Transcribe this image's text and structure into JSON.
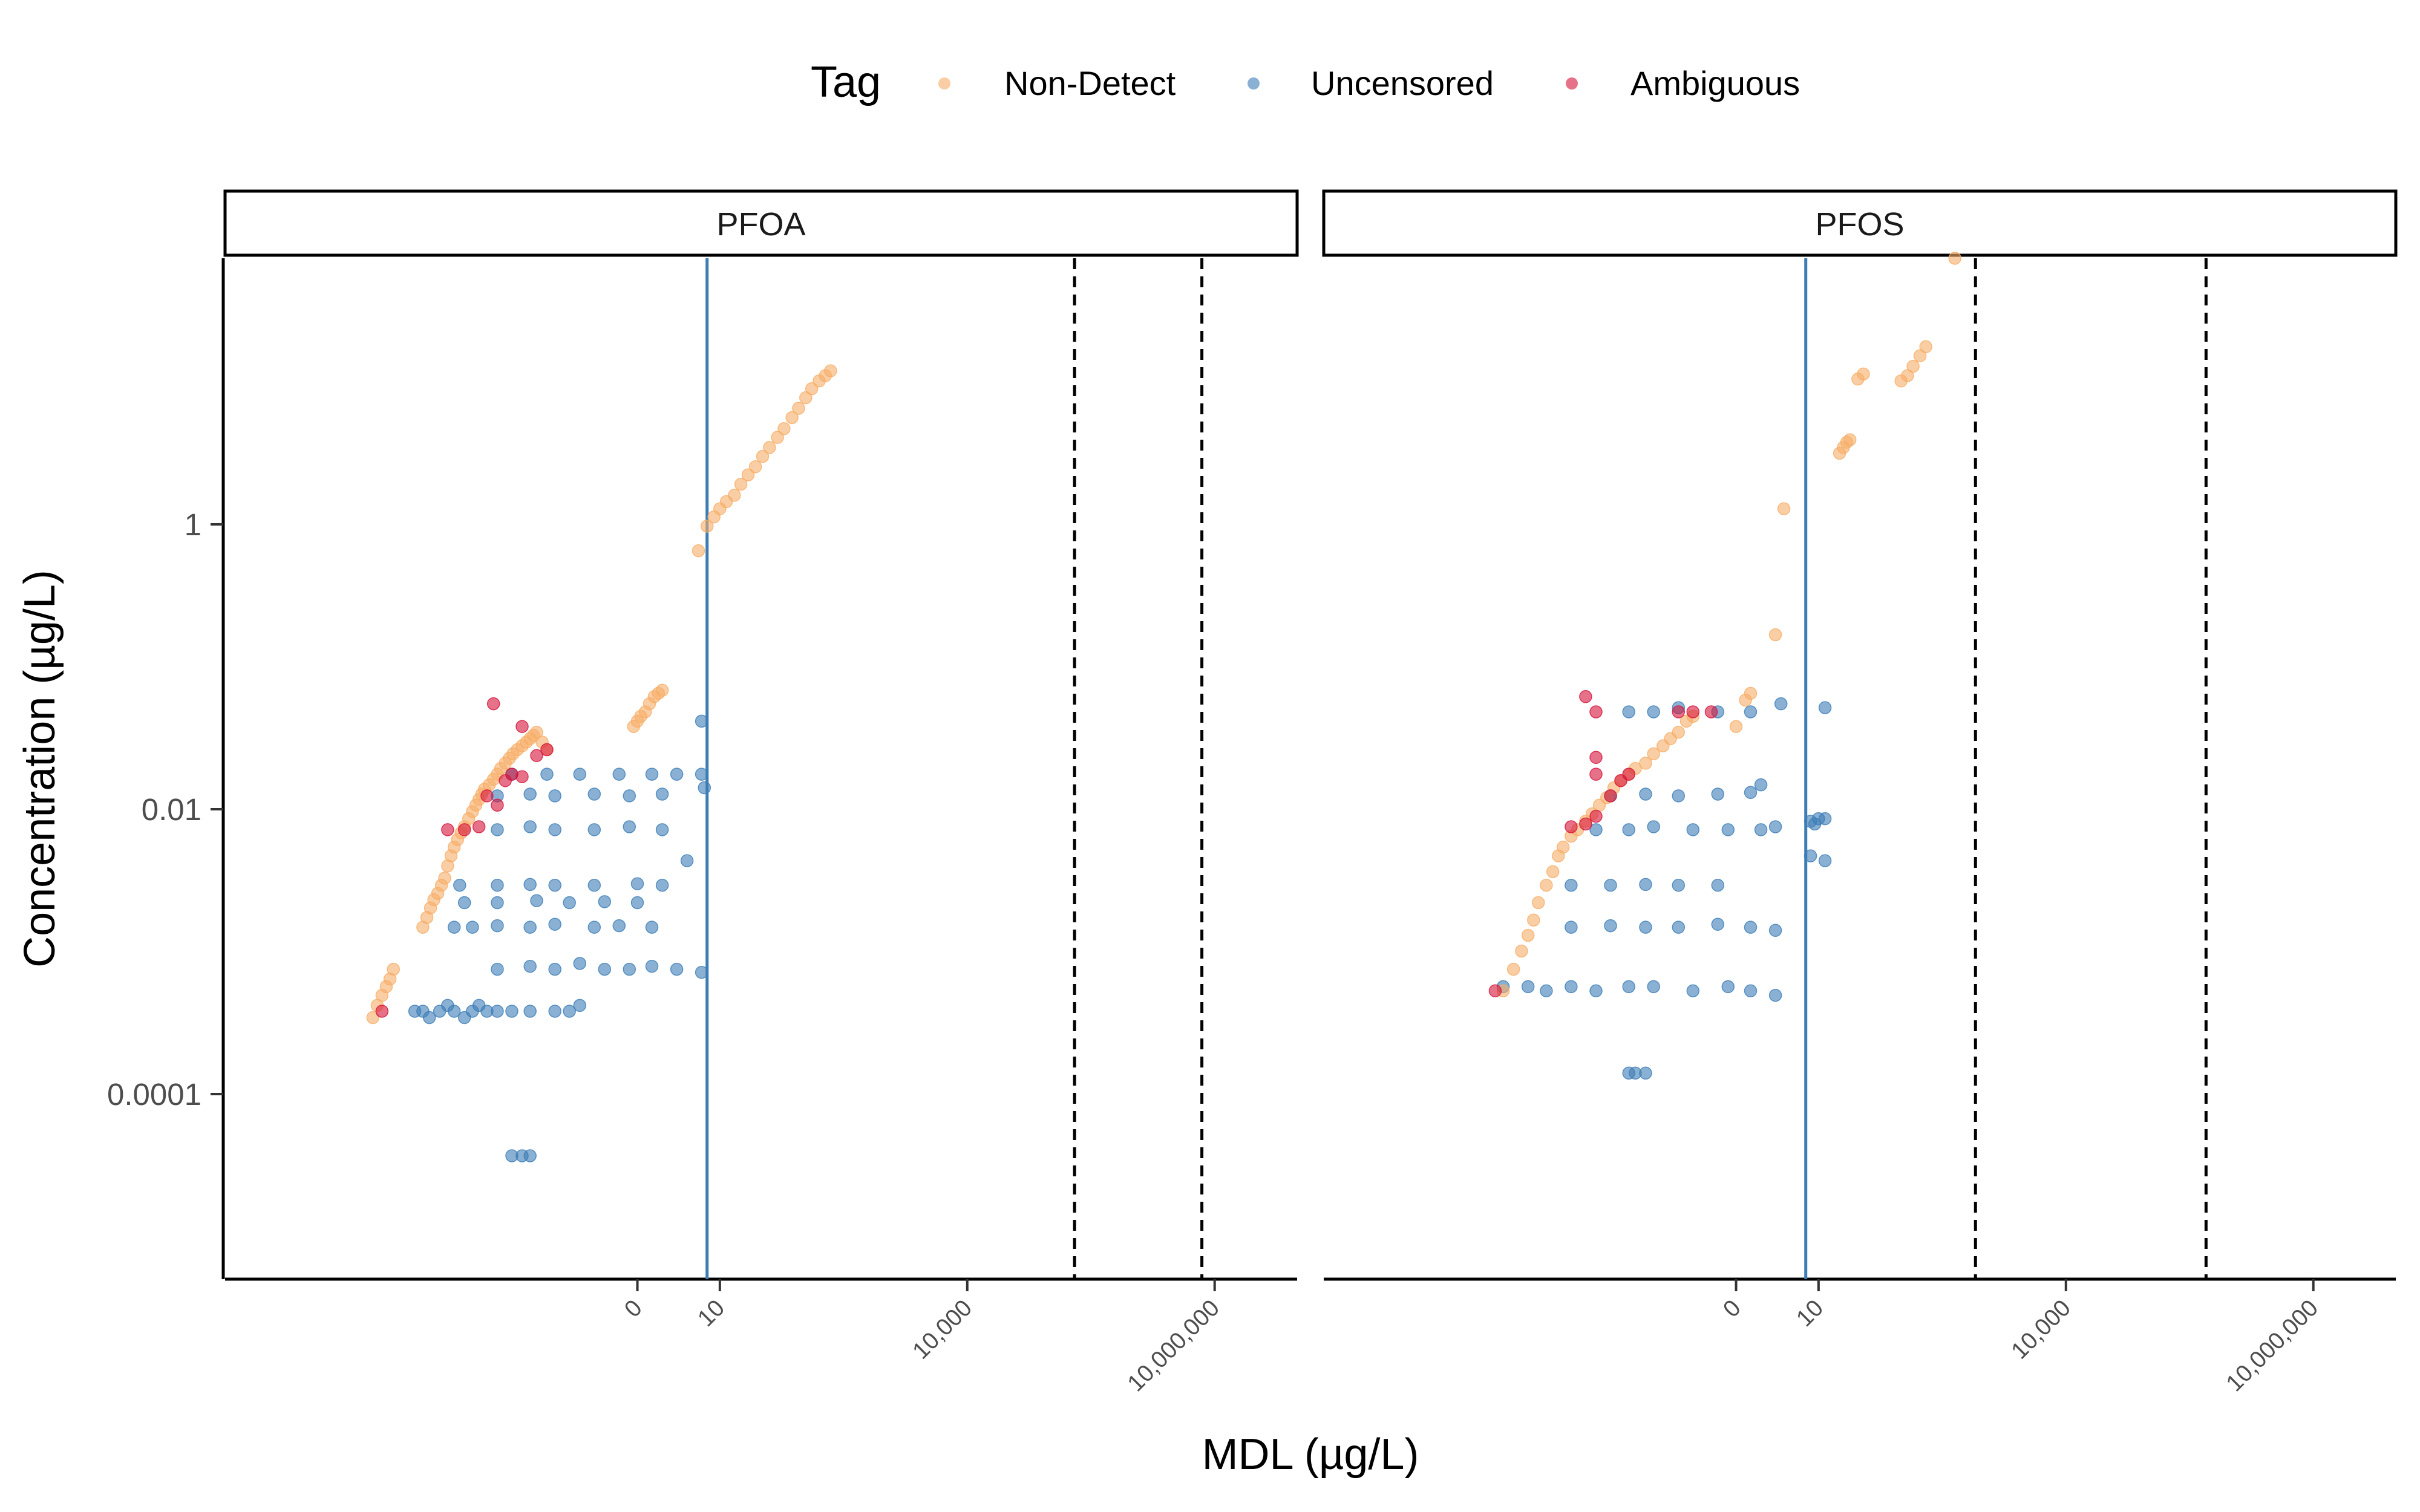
{
  "chart_data": {
    "type": "scatter",
    "title": "",
    "xlabel": "MDL (µg/L)",
    "ylabel": "Concentration (µg/L)",
    "x_scale": "log10 (labels: 0, 10, 10,000, 10,000,000)",
    "y_scale": "log10",
    "xlim": [
      1e-05,
      100000000
    ],
    "ylim": [
      1.2e-06,
      25
    ],
    "x_ticks": [
      {
        "value": 1,
        "label": "0"
      },
      {
        "value": 10,
        "label": "10"
      },
      {
        "value": 10000,
        "label": "10,000"
      },
      {
        "value": 10000000,
        "label": "10,000,000"
      }
    ],
    "y_ticks": [
      {
        "value": 1,
        "label": "1"
      },
      {
        "value": 0.01,
        "label": "0.01"
      },
      {
        "value": 0.0001,
        "label": "0.0001"
      }
    ],
    "legend": {
      "title": "Tag",
      "position": "top",
      "entries": [
        {
          "label": "Non-Detect",
          "color": "#f6ae67"
        },
        {
          "label": "Uncensored",
          "color": "#3c7db6"
        },
        {
          "label": "Ambiguous",
          "color": "#d6143b"
        }
      ]
    },
    "grid": false,
    "facets": [
      {
        "name": "PFOA",
        "vline_solid": 7,
        "vlines_dashed": [
          200000,
          7000000
        ],
        "non_detect_points": [
          [
            0.00062,
            9e-05
          ],
          [
            0.0007,
            0.00011
          ],
          [
            0.0008,
            0.00013
          ],
          [
            0.0009,
            0.00015
          ],
          [
            0.001,
            0.00017
          ],
          [
            0.0011,
            0.0002
          ],
          [
            0.0025,
            0.0004
          ],
          [
            0.0028,
            0.00047
          ],
          [
            0.0031,
            0.00055
          ],
          [
            0.0034,
            0.00063
          ],
          [
            0.0038,
            0.0007
          ],
          [
            0.0042,
            0.0008
          ],
          [
            0.0046,
            0.0009
          ],
          [
            0.005,
            0.0011
          ],
          [
            0.0055,
            0.0013
          ],
          [
            0.006,
            0.0015
          ],
          [
            0.0066,
            0.0017
          ],
          [
            0.0073,
            0.0019
          ],
          [
            0.008,
            0.0021
          ],
          [
            0.009,
            0.0024
          ],
          [
            0.01,
            0.0027
          ],
          [
            0.011,
            0.003
          ],
          [
            0.012,
            0.0033
          ],
          [
            0.013,
            0.0036
          ],
          [
            0.014,
            0.0039
          ],
          [
            0.016,
            0.0042
          ],
          [
            0.018,
            0.0046
          ],
          [
            0.02,
            0.005
          ],
          [
            0.022,
            0.0055
          ],
          [
            0.025,
            0.006
          ],
          [
            0.028,
            0.0065
          ],
          [
            0.031,
            0.007
          ],
          [
            0.035,
            0.0075
          ],
          [
            0.04,
            0.008
          ],
          [
            0.045,
            0.0085
          ],
          [
            0.05,
            0.009
          ],
          [
            0.055,
            0.0095
          ],
          [
            0.06,
            0.01
          ],
          [
            0.07,
            0.0085
          ],
          [
            0.08,
            0.0075
          ],
          [
            0.9,
            0.011
          ],
          [
            1.0,
            0.012
          ],
          [
            1.1,
            0.013
          ],
          [
            1.25,
            0.014
          ],
          [
            1.4,
            0.016
          ],
          [
            1.6,
            0.018
          ],
          [
            1.8,
            0.019
          ],
          [
            2.0,
            0.02
          ],
          [
            5.5,
            0.2
          ],
          [
            7,
            0.3
          ],
          [
            8.5,
            0.35
          ],
          [
            10,
            0.4
          ],
          [
            12,
            0.45
          ],
          [
            15,
            0.5
          ],
          [
            18,
            0.6
          ],
          [
            22,
            0.7
          ],
          [
            27,
            0.8
          ],
          [
            33,
            0.95
          ],
          [
            40,
            1.1
          ],
          [
            50,
            1.3
          ],
          [
            60,
            1.5
          ],
          [
            75,
            1.8
          ],
          [
            90,
            2.1
          ],
          [
            110,
            2.5
          ],
          [
            130,
            2.9
          ],
          [
            160,
            3.3
          ],
          [
            190,
            3.6
          ],
          [
            220,
            3.9
          ]
        ],
        "uncensored_points": [
          [
            0.002,
            0.0001
          ],
          [
            0.0025,
            0.0001
          ],
          [
            0.003,
            9e-05
          ],
          [
            0.004,
            0.0001
          ],
          [
            0.005,
            0.00011
          ],
          [
            0.006,
            0.0001
          ],
          [
            0.008,
            9e-05
          ],
          [
            0.01,
            0.0001
          ],
          [
            0.012,
            0.00011
          ],
          [
            0.015,
            0.0001
          ],
          [
            0.02,
            0.0001
          ],
          [
            0.03,
            0.0001
          ],
          [
            0.05,
            0.0001
          ],
          [
            0.1,
            0.0001
          ],
          [
            0.15,
            0.0001
          ],
          [
            0.2,
            0.00011
          ],
          [
            0.03,
            9.2e-06
          ],
          [
            0.04,
            9.2e-06
          ],
          [
            0.05,
            9.2e-06
          ],
          [
            0.02,
            0.0002
          ],
          [
            0.05,
            0.00021
          ],
          [
            0.1,
            0.0002
          ],
          [
            0.2,
            0.00022
          ],
          [
            0.4,
            0.0002
          ],
          [
            0.8,
            0.0002
          ],
          [
            1.5,
            0.00021
          ],
          [
            3,
            0.0002
          ],
          [
            6,
            0.00019
          ],
          [
            0.006,
            0.0004
          ],
          [
            0.01,
            0.0004
          ],
          [
            0.02,
            0.00041
          ],
          [
            0.05,
            0.0004
          ],
          [
            0.1,
            0.00042
          ],
          [
            0.3,
            0.0004
          ],
          [
            0.6,
            0.00041
          ],
          [
            1.5,
            0.0004
          ],
          [
            0.008,
            0.0006
          ],
          [
            0.02,
            0.0006
          ],
          [
            0.06,
            0.00062
          ],
          [
            0.15,
            0.0006
          ],
          [
            0.4,
            0.00061
          ],
          [
            1,
            0.0006
          ],
          [
            0.007,
            0.0008
          ],
          [
            0.02,
            0.0008
          ],
          [
            0.05,
            0.00081
          ],
          [
            0.1,
            0.0008
          ],
          [
            0.3,
            0.0008
          ],
          [
            1,
            0.00082
          ],
          [
            2,
            0.0008
          ],
          [
            0.02,
            0.002
          ],
          [
            0.05,
            0.0021
          ],
          [
            0.1,
            0.002
          ],
          [
            0.3,
            0.002
          ],
          [
            0.8,
            0.0021
          ],
          [
            2,
            0.002
          ],
          [
            4,
            0.0012
          ],
          [
            0.02,
            0.0035
          ],
          [
            0.05,
            0.0036
          ],
          [
            0.1,
            0.0035
          ],
          [
            0.3,
            0.0036
          ],
          [
            0.8,
            0.0035
          ],
          [
            2,
            0.0036
          ],
          [
            0.03,
            0.005
          ],
          [
            0.08,
            0.005
          ],
          [
            0.2,
            0.005
          ],
          [
            0.6,
            0.005
          ],
          [
            1.5,
            0.005
          ],
          [
            3,
            0.005
          ],
          [
            6,
            0.005
          ],
          [
            6,
            0.012
          ],
          [
            6.5,
            0.004
          ]
        ],
        "ambiguous_points": [
          [
            0.0008,
            0.0001
          ],
          [
            0.005,
            0.002
          ],
          [
            0.008,
            0.002
          ],
          [
            0.012,
            0.0021
          ],
          [
            0.015,
            0.0035
          ],
          [
            0.02,
            0.003
          ],
          [
            0.025,
            0.0045
          ],
          [
            0.03,
            0.005
          ],
          [
            0.04,
            0.0048
          ],
          [
            0.06,
            0.0068
          ],
          [
            0.08,
            0.0075
          ],
          [
            0.018,
            0.016
          ],
          [
            0.04,
            0.011
          ]
        ]
      },
      {
        "name": "PFOS",
        "vline_solid": 7,
        "vlines_dashed": [
          800,
          500000
        ],
        "non_detect_points": [
          [
            0.0015,
            0.00014
          ],
          [
            0.002,
            0.0002
          ],
          [
            0.0025,
            0.00027
          ],
          [
            0.003,
            0.00035
          ],
          [
            0.0035,
            0.00045
          ],
          [
            0.004,
            0.0006
          ],
          [
            0.005,
            0.0008
          ],
          [
            0.006,
            0.001
          ],
          [
            0.007,
            0.0013
          ],
          [
            0.008,
            0.0015
          ],
          [
            0.01,
            0.0018
          ],
          [
            0.012,
            0.002
          ],
          [
            0.015,
            0.0023
          ],
          [
            0.018,
            0.0026
          ],
          [
            0.022,
            0.003
          ],
          [
            0.027,
            0.0034
          ],
          [
            0.033,
            0.004
          ],
          [
            0.04,
            0.0045
          ],
          [
            0.05,
            0.005
          ],
          [
            0.06,
            0.0055
          ],
          [
            0.08,
            0.006
          ],
          [
            0.1,
            0.007
          ],
          [
            0.13,
            0.008
          ],
          [
            0.16,
            0.009
          ],
          [
            0.2,
            0.01
          ],
          [
            0.25,
            0.012
          ],
          [
            0.3,
            0.013
          ],
          [
            1.0,
            0.011
          ],
          [
            1.3,
            0.017
          ],
          [
            1.5,
            0.019
          ],
          [
            3,
            0.05
          ],
          [
            3.8,
            0.4
          ],
          [
            18,
            1.0
          ],
          [
            20,
            1.1
          ],
          [
            22,
            1.2
          ],
          [
            24,
            1.25
          ],
          [
            100,
            3.3
          ],
          [
            120,
            3.6
          ],
          [
            140,
            4.2
          ],
          [
            170,
            5.0
          ],
          [
            200,
            5.8
          ],
          [
            30,
            3.4
          ],
          [
            35,
            3.7
          ],
          [
            450,
            25
          ]
        ],
        "uncensored_points": [
          [
            0.0015,
            0.00015
          ],
          [
            0.003,
            0.00015
          ],
          [
            0.005,
            0.00014
          ],
          [
            0.01,
            0.00015
          ],
          [
            0.02,
            0.00014
          ],
          [
            0.05,
            0.00015
          ],
          [
            0.1,
            0.00015
          ],
          [
            0.3,
            0.00014
          ],
          [
            0.8,
            0.00015
          ],
          [
            1.5,
            0.00014
          ],
          [
            3,
            0.00013
          ],
          [
            0.05,
            3.6e-05
          ],
          [
            0.06,
            3.6e-05
          ],
          [
            0.08,
            3.6e-05
          ],
          [
            0.01,
            0.0004
          ],
          [
            0.03,
            0.00041
          ],
          [
            0.08,
            0.0004
          ],
          [
            0.2,
            0.0004
          ],
          [
            0.6,
            0.00042
          ],
          [
            1.5,
            0.0004
          ],
          [
            3,
            0.00038
          ],
          [
            0.01,
            0.0008
          ],
          [
            0.03,
            0.0008
          ],
          [
            0.08,
            0.00081
          ],
          [
            0.2,
            0.0008
          ],
          [
            0.6,
            0.0008
          ],
          [
            0.02,
            0.002
          ],
          [
            0.05,
            0.002
          ],
          [
            0.1,
            0.0021
          ],
          [
            0.3,
            0.002
          ],
          [
            0.8,
            0.002
          ],
          [
            2,
            0.002
          ],
          [
            3,
            0.0021
          ],
          [
            8,
            0.0023
          ],
          [
            9,
            0.0022
          ],
          [
            0.03,
            0.0035
          ],
          [
            0.08,
            0.0036
          ],
          [
            0.2,
            0.0035
          ],
          [
            0.6,
            0.0036
          ],
          [
            1.5,
            0.0037
          ],
          [
            2,
            0.0042
          ],
          [
            0.05,
            0.014
          ],
          [
            0.1,
            0.014
          ],
          [
            0.2,
            0.015
          ],
          [
            0.6,
            0.014
          ],
          [
            1.5,
            0.014
          ],
          [
            10,
            0.0024
          ],
          [
            12,
            0.0012
          ],
          [
            3.5,
            0.016
          ],
          [
            12,
            0.015
          ],
          [
            12,
            0.0024
          ],
          [
            8,
            0.0013
          ]
        ],
        "ambiguous_points": [
          [
            0.0012,
            0.00014
          ],
          [
            0.01,
            0.0021
          ],
          [
            0.015,
            0.0022
          ],
          [
            0.02,
            0.0025
          ],
          [
            0.03,
            0.0035
          ],
          [
            0.04,
            0.0045
          ],
          [
            0.05,
            0.005
          ],
          [
            0.02,
            0.0066
          ],
          [
            0.02,
            0.014
          ],
          [
            0.015,
            0.018
          ],
          [
            0.3,
            0.014
          ],
          [
            0.5,
            0.014
          ],
          [
            0.2,
            0.014
          ],
          [
            0.02,
            0.005
          ]
        ]
      }
    ]
  }
}
